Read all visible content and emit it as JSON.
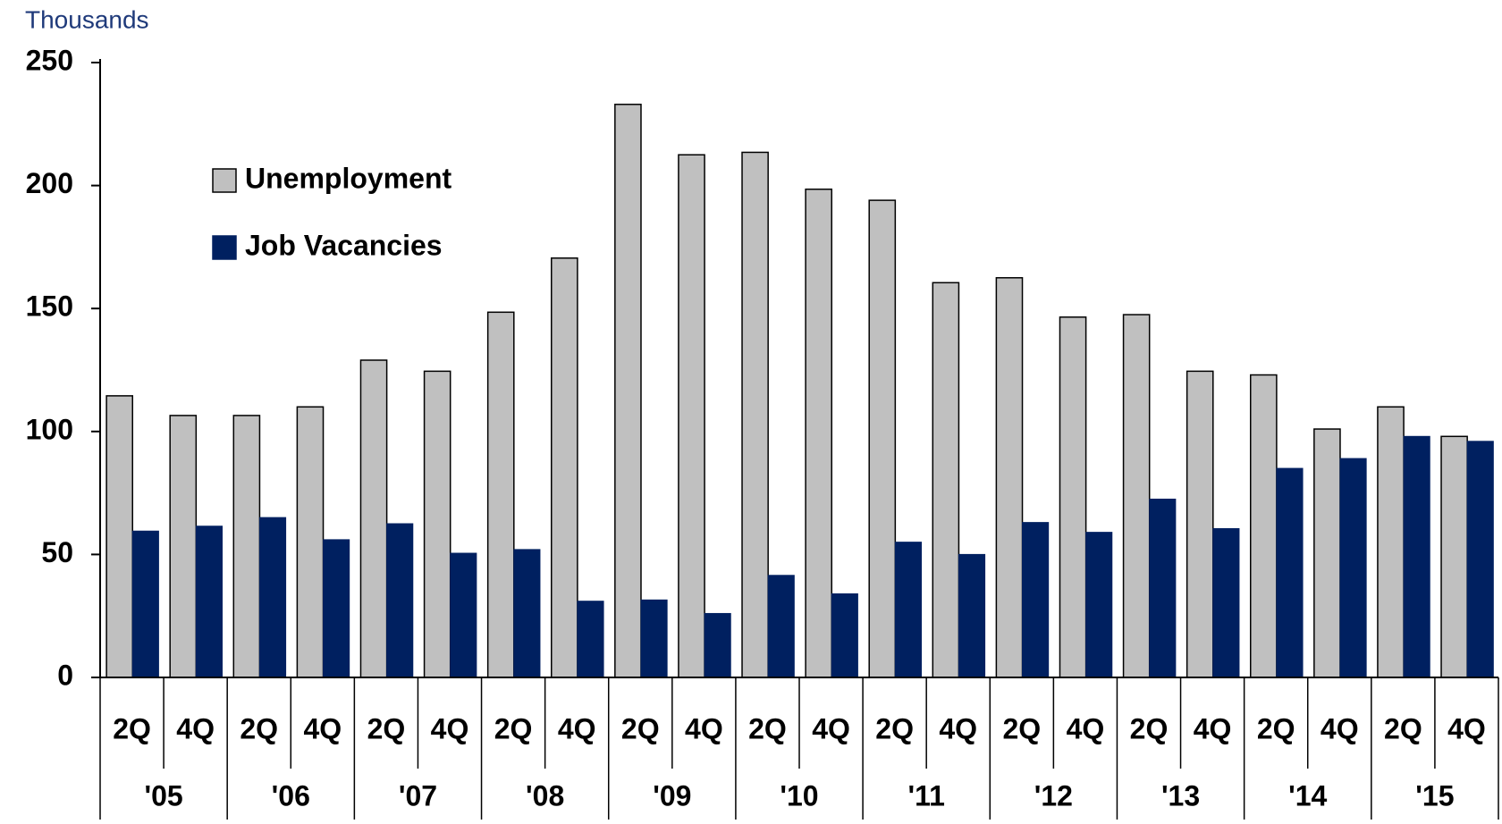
{
  "chart_data": {
    "type": "bar",
    "ylabel": "Thousands",
    "categories": [
      "2Q",
      "4Q",
      "2Q",
      "4Q",
      "2Q",
      "4Q",
      "2Q",
      "4Q",
      "2Q",
      "4Q",
      "2Q",
      "4Q",
      "2Q",
      "4Q",
      "2Q",
      "4Q",
      "2Q",
      "4Q",
      "2Q",
      "4Q",
      "2Q",
      "4Q"
    ],
    "groups": [
      "'05",
      "'06",
      "'07",
      "'08",
      "'09",
      "'10",
      "'11",
      "'12",
      "'13",
      "'14",
      "'15"
    ],
    "series": [
      {
        "name": "Unemployment",
        "color": "#c0c0c0",
        "values": [
          114.5,
          106.5,
          106.5,
          110,
          129,
          124.5,
          148.5,
          170.5,
          233,
          212.5,
          213.5,
          198.5,
          194,
          160.5,
          162.5,
          146.5,
          147.5,
          124.5,
          123,
          101,
          110,
          98
        ]
      },
      {
        "name": "Job Vacancies",
        "color": "#002060",
        "values": [
          59.5,
          61.5,
          65,
          56,
          62.5,
          50.5,
          52,
          31,
          31.5,
          26,
          41.5,
          34,
          55,
          50,
          63,
          59,
          72.5,
          60.5,
          85,
          89,
          98,
          96
        ]
      }
    ],
    "ylim": [
      0,
      250
    ],
    "yticks": [
      0,
      50,
      100,
      150,
      200,
      250
    ],
    "legend": "upper left"
  }
}
